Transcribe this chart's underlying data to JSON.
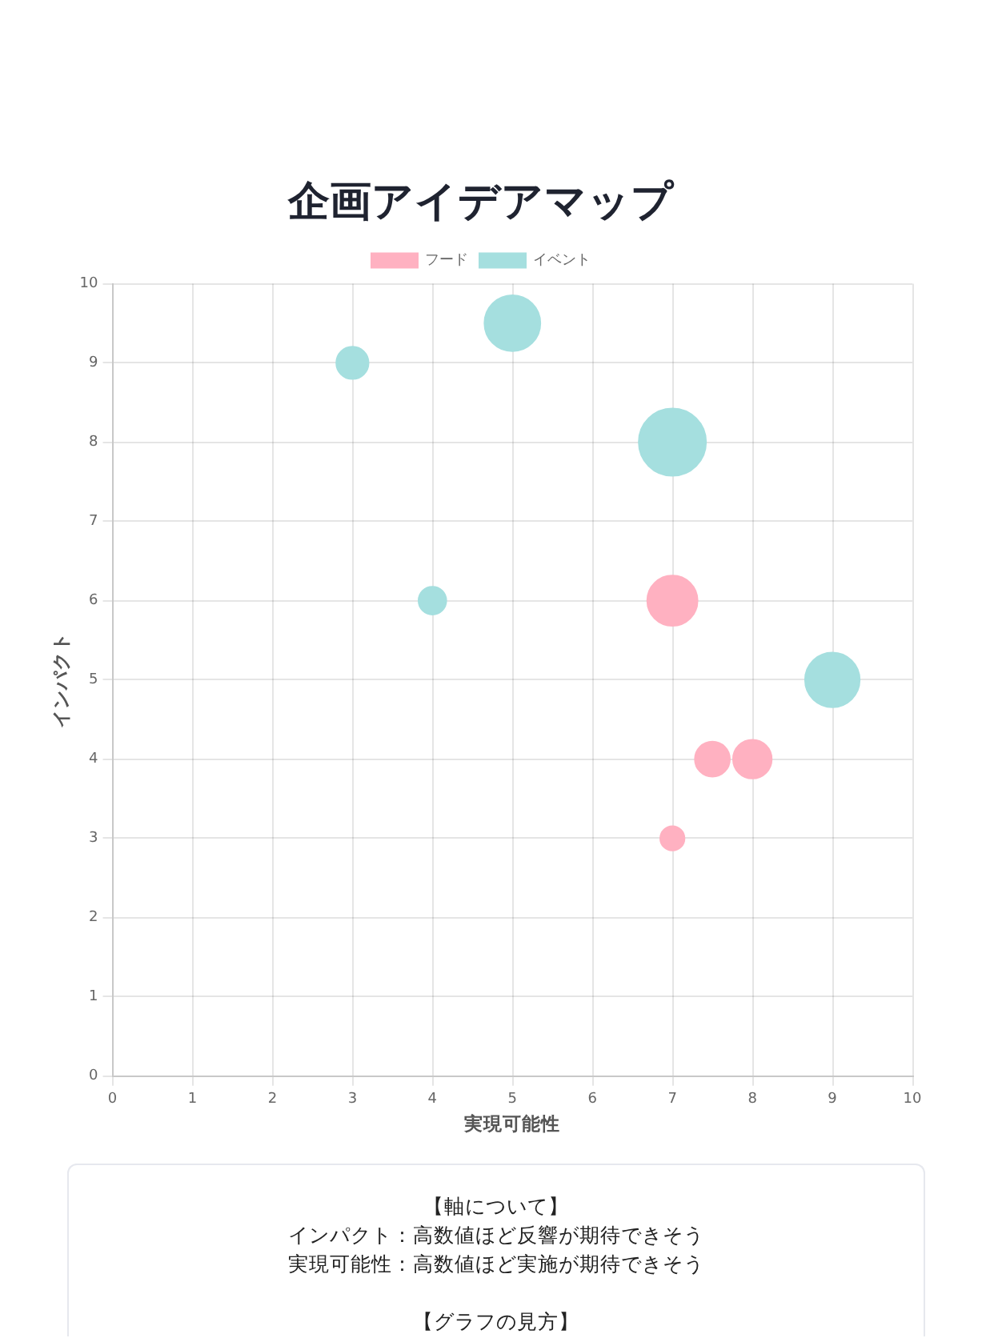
{
  "chart_data": {
    "type": "bubble",
    "title": "企画アイデアマップ",
    "xlabel": "実現可能性",
    "ylabel": "インパクト",
    "xlim": [
      0,
      10
    ],
    "ylim": [
      0,
      10
    ],
    "xticks": [
      0,
      1,
      2,
      3,
      4,
      5,
      6,
      7,
      8,
      9,
      10
    ],
    "yticks": [
      0,
      1,
      2,
      3,
      4,
      5,
      6,
      7,
      8,
      9,
      10
    ],
    "grid": true,
    "legend": "top",
    "series": [
      {
        "name": "フード",
        "color": "#ffb1c1",
        "x": [
          7,
          7.5,
          8,
          7
        ],
        "values": [
          6,
          4,
          4,
          3
        ],
        "sizes": [
          0.56,
          0.27,
          0.33,
          0.13
        ]
      },
      {
        "name": "イベント",
        "color": "#a5dfdf",
        "x": [
          3,
          5,
          7,
          4,
          9
        ],
        "values": [
          9,
          9.5,
          8,
          6,
          5
        ],
        "sizes": [
          0.23,
          0.69,
          1,
          0.17,
          0.66
        ]
      }
    ],
    "annotations": [
      "【軸について】",
      "インパクト：高数値ほど反響が期待できそう",
      "実現可能性：高数値ほど実施が期待できそう",
      "【グラフの見方】"
    ]
  }
}
